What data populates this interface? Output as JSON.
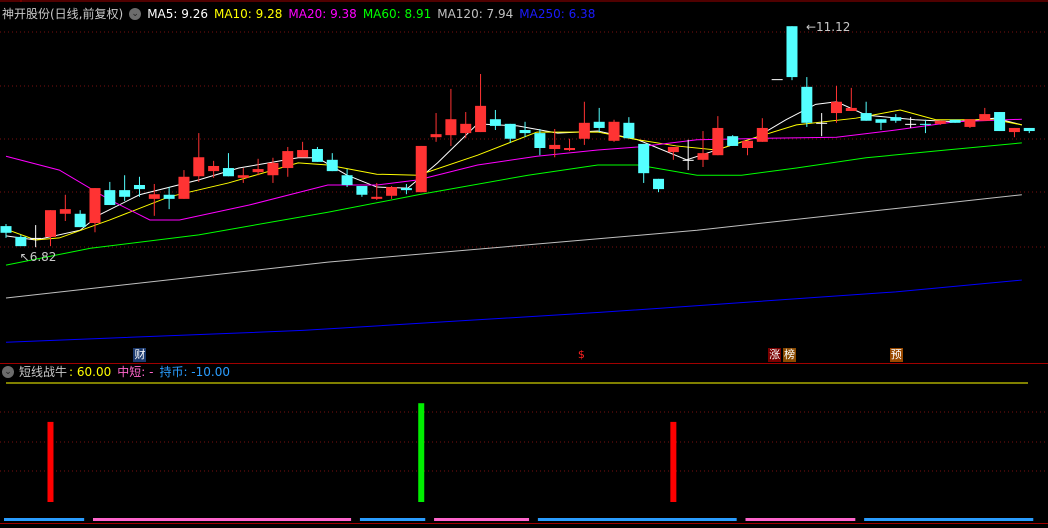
{
  "header": {
    "title": "神开股份(日线,前复权)",
    "ma": [
      {
        "label": "MA5: 9.26",
        "color": "#ffffff"
      },
      {
        "label": "MA10: 9.28",
        "color": "#ffff00"
      },
      {
        "label": "MA20: 9.38",
        "color": "#ff00ff"
      },
      {
        "label": "MA60: 8.91",
        "color": "#00ff00"
      },
      {
        "label": "MA120: 7.94",
        "color": "#c0c0c0"
      },
      {
        "label": "MA250: 6.38",
        "color": "#0000ff"
      }
    ]
  },
  "price_chart": {
    "colors": {
      "up": "#ff3333",
      "down": "#54ffff",
      "doji": "#ffffff",
      "grid": "#7a1010"
    },
    "high_label": "11.12",
    "low_label": "6.82",
    "candles": [
      [
        7.23,
        7.27,
        7.0,
        7.1
      ],
      [
        7.02,
        7.06,
        6.86,
        6.84
      ],
      [
        7.0,
        7.25,
        6.82,
        7.0
      ],
      [
        7.02,
        7.54,
        6.84,
        7.54
      ],
      [
        7.47,
        7.84,
        7.33,
        7.56
      ],
      [
        7.47,
        7.54,
        7.21,
        7.21
      ],
      [
        7.29,
        7.97,
        7.11,
        7.97
      ],
      [
        7.93,
        8.09,
        7.64,
        7.64
      ],
      [
        7.93,
        8.22,
        7.72,
        7.8
      ],
      [
        8.03,
        8.19,
        7.8,
        7.95
      ],
      [
        7.76,
        8.05,
        7.43,
        7.85
      ],
      [
        7.84,
        7.99,
        7.56,
        7.76
      ],
      [
        7.76,
        8.32,
        7.76,
        8.19
      ],
      [
        8.2,
        9.04,
        8.09,
        8.57
      ],
      [
        8.3,
        8.5,
        8.17,
        8.4
      ],
      [
        8.36,
        8.65,
        8.2,
        8.2
      ],
      [
        8.17,
        8.36,
        8.07,
        8.22
      ],
      [
        8.28,
        8.54,
        8.22,
        8.34
      ],
      [
        8.22,
        8.56,
        8.07,
        8.46
      ],
      [
        8.36,
        8.77,
        8.19,
        8.69
      ],
      [
        8.57,
        8.87,
        8.57,
        8.71
      ],
      [
        8.73,
        8.77,
        8.48,
        8.48
      ],
      [
        8.52,
        8.65,
        8.3,
        8.3
      ],
      [
        8.22,
        8.34,
        7.99,
        8.03
      ],
      [
        8.01,
        8.01,
        7.8,
        7.84
      ],
      [
        7.76,
        8.07,
        7.74,
        7.8
      ],
      [
        7.82,
        8.01,
        7.76,
        7.99
      ],
      [
        7.97,
        8.05,
        7.85,
        7.93
      ],
      [
        7.89,
        8.79,
        7.89,
        8.79
      ],
      [
        8.96,
        9.43,
        8.87,
        9.02
      ],
      [
        9.0,
        9.9,
        8.79,
        9.31
      ],
      [
        9.04,
        9.45,
        8.94,
        9.22
      ],
      [
        9.06,
        10.19,
        9.06,
        9.57
      ],
      [
        9.31,
        9.49,
        9.1,
        9.18
      ],
      [
        9.22,
        9.22,
        8.85,
        8.93
      ],
      [
        9.1,
        9.26,
        8.96,
        9.04
      ],
      [
        9.04,
        9.12,
        8.61,
        8.75
      ],
      [
        8.73,
        9.12,
        8.57,
        8.81
      ],
      [
        8.71,
        8.93,
        8.69,
        8.75
      ],
      [
        8.93,
        9.65,
        8.81,
        9.24
      ],
      [
        9.26,
        9.53,
        9.06,
        9.14
      ],
      [
        8.89,
        9.3,
        8.87,
        9.26
      ],
      [
        9.24,
        9.35,
        8.94,
        8.94
      ],
      [
        8.83,
        8.83,
        8.07,
        8.26
      ],
      [
        8.15,
        8.15,
        7.89,
        7.95
      ],
      [
        8.67,
        8.77,
        8.52,
        8.77
      ],
      [
        8.52,
        8.91,
        8.32,
        8.52
      ],
      [
        8.52,
        9.08,
        8.38,
        8.65
      ],
      [
        8.61,
        9.37,
        8.61,
        9.14
      ],
      [
        8.98,
        9.0,
        8.79,
        8.79
      ],
      [
        8.75,
        8.89,
        8.61,
        8.89
      ],
      [
        8.87,
        9.33,
        8.87,
        9.14
      ],
      [
        10.09,
        10.09,
        10.09,
        10.09
      ],
      [
        11.12,
        11.12,
        10.07,
        10.13
      ],
      [
        9.94,
        10.13,
        9.16,
        9.24
      ],
      [
        9.24,
        9.43,
        8.98,
        9.24
      ],
      [
        9.43,
        9.96,
        9.24,
        9.65
      ],
      [
        9.47,
        9.92,
        9.47,
        9.53
      ],
      [
        9.43,
        9.65,
        9.28,
        9.28
      ],
      [
        9.31,
        9.31,
        9.1,
        9.24
      ],
      [
        9.35,
        9.41,
        9.24,
        9.28
      ],
      [
        9.22,
        9.35,
        9.14,
        9.22
      ],
      [
        9.22,
        9.3,
        9.04,
        9.2
      ],
      [
        9.22,
        9.28,
        9.2,
        9.28
      ],
      [
        9.3,
        9.3,
        9.24,
        9.24
      ],
      [
        9.16,
        9.31,
        9.14,
        9.31
      ],
      [
        9.28,
        9.53,
        9.28,
        9.41
      ],
      [
        9.45,
        9.45,
        9.08,
        9.08
      ],
      [
        9.06,
        9.14,
        8.96,
        9.14
      ],
      [
        9.14,
        9.14,
        9.04,
        9.08
      ]
    ],
    "ma_lines": [
      {
        "name": "MA5",
        "color": "#ffffff",
        "points": [
          [
            0,
            7.04
          ],
          [
            2,
            6.96
          ],
          [
            5,
            7.15
          ],
          [
            6.3,
            7.45
          ],
          [
            9,
            7.84
          ],
          [
            13,
            8.13
          ],
          [
            15.7,
            8.36
          ],
          [
            19.7,
            8.56
          ],
          [
            21,
            8.56
          ],
          [
            23,
            8.22
          ],
          [
            25,
            7.99
          ],
          [
            27.1,
            7.97
          ],
          [
            29.1,
            8.46
          ],
          [
            31.8,
            9.22
          ],
          [
            34.5,
            9.18
          ],
          [
            37.2,
            9.04
          ],
          [
            39.9,
            9.08
          ],
          [
            42.6,
            8.91
          ],
          [
            45.9,
            8.52
          ],
          [
            47.9,
            8.71
          ],
          [
            50.6,
            8.96
          ],
          [
            52.6,
            9.3
          ],
          [
            54.6,
            9.6
          ],
          [
            56,
            9.65
          ],
          [
            58,
            9.39
          ],
          [
            61.3,
            9.3
          ],
          [
            64,
            9.26
          ],
          [
            66.7,
            9.33
          ],
          [
            68.5,
            9.2
          ]
        ]
      },
      {
        "name": "MA10",
        "color": "#ffff00",
        "points": [
          [
            0,
            7.17
          ],
          [
            2,
            6.96
          ],
          [
            3.6,
            7.0
          ],
          [
            7,
            7.35
          ],
          [
            11,
            7.8
          ],
          [
            15,
            8.07
          ],
          [
            19.7,
            8.46
          ],
          [
            21.7,
            8.42
          ],
          [
            25,
            8.24
          ],
          [
            27.8,
            8.22
          ],
          [
            31.8,
            8.61
          ],
          [
            35.8,
            9.06
          ],
          [
            39.9,
            9.06
          ],
          [
            42.6,
            8.91
          ],
          [
            45.2,
            8.79
          ],
          [
            47.9,
            8.71
          ],
          [
            50.6,
            8.96
          ],
          [
            53.3,
            9.2
          ],
          [
            57.3,
            9.33
          ],
          [
            60.3,
            9.49
          ],
          [
            62.7,
            9.3
          ],
          [
            66.7,
            9.3
          ],
          [
            68.5,
            9.2
          ]
        ]
      },
      {
        "name": "MA20",
        "color": "#ff00ff",
        "points": [
          [
            0,
            8.59
          ],
          [
            3.6,
            8.32
          ],
          [
            7,
            7.74
          ],
          [
            9.7,
            7.35
          ],
          [
            11.7,
            7.35
          ],
          [
            16.4,
            7.64
          ],
          [
            21.7,
            8.03
          ],
          [
            25,
            8.03
          ],
          [
            27.8,
            8.13
          ],
          [
            31.8,
            8.42
          ],
          [
            35.8,
            8.59
          ],
          [
            39.9,
            8.71
          ],
          [
            42.6,
            8.77
          ],
          [
            46.6,
            8.91
          ],
          [
            51.3,
            8.94
          ],
          [
            56,
            8.96
          ],
          [
            60,
            9.1
          ],
          [
            64,
            9.26
          ],
          [
            68.5,
            9.31
          ]
        ]
      },
      {
        "name": "MA60",
        "color": "#00ff00",
        "points": [
          [
            0,
            6.47
          ],
          [
            5.7,
            6.8
          ],
          [
            13,
            7.06
          ],
          [
            21.7,
            7.5
          ],
          [
            27.8,
            7.84
          ],
          [
            35.2,
            8.22
          ],
          [
            39.9,
            8.42
          ],
          [
            42.6,
            8.42
          ],
          [
            46.6,
            8.22
          ],
          [
            49.6,
            8.22
          ],
          [
            53.3,
            8.36
          ],
          [
            58,
            8.56
          ],
          [
            63.4,
            8.71
          ],
          [
            68.5,
            8.85
          ]
        ]
      },
      {
        "name": "MA120",
        "color": "#c0c0c0",
        "points": [
          [
            0,
            5.83
          ],
          [
            21.7,
            6.53
          ],
          [
            46.6,
            7.15
          ],
          [
            68.5,
            7.84
          ]
        ]
      },
      {
        "name": "MA250",
        "color": "#0000ff",
        "points": [
          [
            0,
            4.97
          ],
          [
            20,
            5.2
          ],
          [
            40,
            5.55
          ],
          [
            60,
            5.95
          ],
          [
            68.5,
            6.18
          ]
        ]
      }
    ],
    "markers": [
      {
        "text": "财",
        "index": 9,
        "bg": "#1c3a6e",
        "color": "#ffffff"
      },
      {
        "text": "$",
        "index": 38.9,
        "bg": "transparent",
        "color": "#ff2020"
      },
      {
        "text": "涨",
        "index": 51.8,
        "bg": "#7a0000",
        "color": "#ffffff"
      },
      {
        "text": "榜",
        "index": 52.8,
        "bg": "#8a4a00",
        "color": "#ffffff"
      },
      {
        "text": "预",
        "index": 60,
        "bg": "#9a4a00",
        "color": "#ffffff"
      }
    ]
  },
  "indicator": {
    "name": "短线战牛",
    "value_label": ": 60.00",
    "mid_label": "中短: -",
    "hold_label": "持币: -10.00",
    "colors": {
      "name": "#c8c8c8",
      "value": "#ffff00",
      "mid": "#ff66cc",
      "hold": "#2a9dff"
    },
    "signals": [
      {
        "index": 3,
        "value": 60,
        "color": "#ff0000"
      },
      {
        "index": 28,
        "value": 74,
        "color": "#00ee00"
      },
      {
        "index": 45,
        "value": 60,
        "color": "#ff0000"
      }
    ],
    "states": [
      {
        "from": 0,
        "to": 5,
        "state": "持币",
        "color": "#2a9dff"
      },
      {
        "from": 6,
        "to": 23,
        "state": "中短",
        "color": "#ff66cc"
      },
      {
        "from": 24,
        "to": 28,
        "state": "持币",
        "color": "#2a9dff"
      },
      {
        "from": 29,
        "to": 35,
        "state": "中短",
        "color": "#ff66cc"
      },
      {
        "from": 36,
        "to": 49,
        "state": "持币",
        "color": "#2a9dff"
      },
      {
        "from": 50,
        "to": 57,
        "state": "中短",
        "color": "#ff66cc"
      },
      {
        "from": 58,
        "to": 69,
        "state": "持币",
        "color": "#2a9dff"
      }
    ]
  }
}
